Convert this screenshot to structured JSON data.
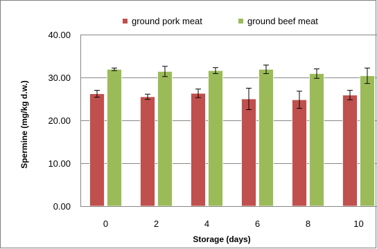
{
  "chart_data": {
    "type": "bar",
    "xlabel": "Storage (days)",
    "ylabel": "Spermine  (mg/kg d.w.)",
    "categories": [
      "0",
      "2",
      "4",
      "6",
      "8",
      "10"
    ],
    "ylim": [
      0,
      40
    ],
    "yticks": [
      0,
      10,
      20,
      30,
      40
    ],
    "ytick_labels": [
      "0.00",
      "10.00",
      "20.00",
      "30.00",
      "40.00"
    ],
    "grid": true,
    "legend_position": "top",
    "error_bars": true,
    "series": [
      {
        "name": "ground pork meat",
        "color": "#c0504d",
        "values": [
          26.2,
          25.5,
          26.3,
          25.0,
          24.8,
          25.9
        ],
        "errors": [
          0.8,
          0.6,
          1.0,
          2.5,
          2.0,
          1.1
        ]
      },
      {
        "name": "ground beef meat",
        "color": "#9bbb59",
        "values": [
          31.9,
          31.4,
          31.6,
          31.9,
          30.9,
          30.4
        ],
        "errors": [
          0.3,
          1.2,
          0.7,
          1.0,
          1.1,
          1.8
        ]
      }
    ]
  }
}
